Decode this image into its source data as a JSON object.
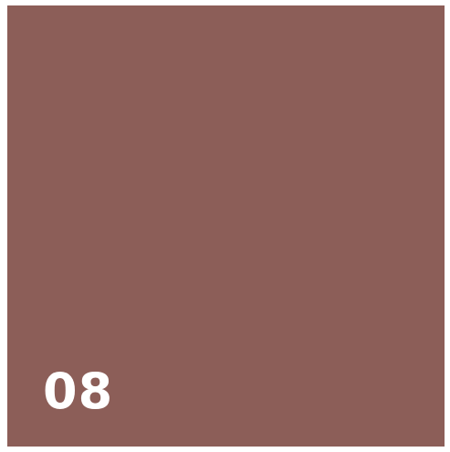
{
  "swatch": {
    "number": "08",
    "color": "#8c5e58",
    "text_color": "#ffffff"
  }
}
